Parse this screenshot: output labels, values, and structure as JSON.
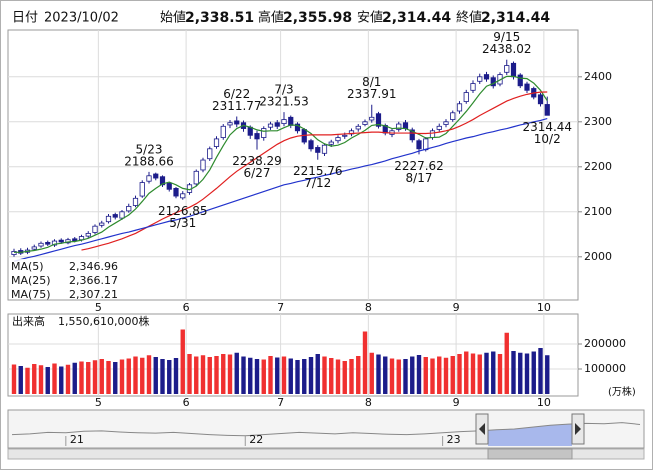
{
  "header": {
    "date_label": "日付",
    "date": "2023/10/02",
    "items": [
      {
        "label": "始値",
        "value": "2,338.51",
        "color": "#000000"
      },
      {
        "label": "高値",
        "value": "2,355.98",
        "color": "#e00000"
      },
      {
        "label": "安値",
        "value": "2,314.44",
        "color": "#008000"
      },
      {
        "label": "終値",
        "value": "2,314.44",
        "color": "#000000"
      }
    ]
  },
  "chart_data": [
    {
      "type": "candlestick",
      "categories": [
        null,
        null,
        null,
        null,
        null,
        null,
        null,
        null,
        null,
        null,
        null,
        null,
        null,
        "5",
        null,
        null,
        null,
        null,
        null,
        null,
        null,
        null,
        null,
        null,
        null,
        null,
        "6",
        null,
        null,
        null,
        null,
        null,
        null,
        null,
        null,
        null,
        null,
        null,
        null,
        null,
        "7",
        null,
        null,
        null,
        null,
        null,
        null,
        null,
        null,
        null,
        null,
        null,
        null,
        "8",
        null,
        null,
        null,
        null,
        null,
        null,
        null,
        null,
        null,
        null,
        null,
        null,
        "9",
        null,
        null,
        null,
        null,
        null,
        null,
        null,
        null,
        null,
        null,
        null,
        null,
        "10"
      ],
      "open": [
        2005,
        2014,
        2010,
        2017,
        2024,
        2032,
        2026,
        2037,
        2031,
        2040,
        2038,
        2046,
        2054,
        2070,
        2078,
        2094,
        2086,
        2102,
        2114,
        2135,
        2168,
        2184,
        2178,
        2163,
        2152,
        2131,
        2143,
        2162,
        2193,
        2218,
        2245,
        2265,
        2293,
        2302,
        2298,
        2288,
        2274,
        2265,
        2288,
        2298,
        2296,
        2310,
        2295,
        2283,
        2258,
        2243,
        2230,
        2250,
        2258,
        2268,
        2273,
        2284,
        2294,
        2304,
        2318,
        2292,
        2272,
        2283,
        2298,
        2282,
        2258,
        2238,
        2265,
        2283,
        2294,
        2305,
        2324,
        2345,
        2370,
        2390,
        2405,
        2398,
        2384,
        2410,
        2430,
        2404,
        2384,
        2374,
        2360,
        2338.51
      ],
      "high": [
        2018,
        2019,
        2020,
        2027,
        2034,
        2036,
        2039,
        2041,
        2042,
        2044,
        2049,
        2057,
        2072,
        2080,
        2095,
        2098,
        2104,
        2118,
        2136,
        2170,
        2188.66,
        2187,
        2181,
        2166,
        2155,
        2146,
        2164,
        2194,
        2220,
        2245,
        2268,
        2295,
        2304,
        2311.77,
        2303,
        2292,
        2280,
        2290,
        2300,
        2304,
        2321.53,
        2314,
        2299,
        2286,
        2262,
        2248,
        2252,
        2260,
        2270,
        2276,
        2285,
        2295,
        2305,
        2337.91,
        2322,
        2296,
        2286,
        2300,
        2304,
        2287,
        2262,
        2266,
        2285,
        2296,
        2306,
        2325,
        2346,
        2371,
        2392,
        2407,
        2411,
        2403,
        2410,
        2438.02,
        2434,
        2408,
        2389,
        2378,
        2364,
        2355.98
      ],
      "low": [
        2000,
        2004,
        2006,
        2013,
        2020,
        2024,
        2022,
        2029,
        2028,
        2032,
        2034,
        2042,
        2050,
        2065,
        2074,
        2083,
        2082,
        2098,
        2110,
        2131,
        2163,
        2170,
        2155,
        2145,
        2130,
        2126.85,
        2138,
        2158,
        2188,
        2213,
        2240,
        2260,
        2286,
        2288,
        2278,
        2262,
        2238.29,
        2258,
        2282,
        2284,
        2290,
        2286,
        2274,
        2250,
        2234,
        2215.76,
        2224,
        2244,
        2252,
        2262,
        2268,
        2278,
        2290,
        2298,
        2285,
        2270,
        2266,
        2278,
        2280,
        2254,
        2227.62,
        2234,
        2260,
        2278,
        2288,
        2300,
        2318,
        2340,
        2364,
        2384,
        2389,
        2374,
        2379,
        2404,
        2394,
        2375,
        2364,
        2350,
        2334,
        2314.44
      ],
      "close": [
        2012,
        2008,
        2015,
        2022,
        2030,
        2028,
        2035,
        2033,
        2038,
        2036,
        2045,
        2052,
        2068,
        2075,
        2090,
        2088,
        2100,
        2112,
        2130,
        2165,
        2180,
        2175,
        2160,
        2150,
        2135,
        2140,
        2160,
        2190,
        2215,
        2240,
        2262,
        2290,
        2298,
        2295,
        2285,
        2270,
        2262,
        2285,
        2295,
        2290,
        2305,
        2292,
        2280,
        2255,
        2240,
        2232,
        2248,
        2255,
        2265,
        2270,
        2280,
        2290,
        2300,
        2310,
        2290,
        2275,
        2280,
        2295,
        2285,
        2260,
        2240,
        2262,
        2280,
        2290,
        2300,
        2320,
        2340,
        2365,
        2385,
        2400,
        2395,
        2380,
        2405,
        2425,
        2400,
        2380,
        2370,
        2355,
        2340,
        2314.44
      ],
      "up_color": "#ffffff",
      "down_color": "#1c1c8a",
      "edge_color": "#1c1c8a",
      "series": [
        {
          "name": "MA(5)",
          "color": "#2e8b2e",
          "value_label": "2,346.96",
          "values": [
            2010,
            2010,
            2012,
            2014,
            2017,
            2021,
            2028,
            2030,
            2033,
            2034,
            2037,
            2041,
            2048,
            2055,
            2066,
            2075,
            2084,
            2093,
            2106,
            2123,
            2141,
            2152,
            2162,
            2166,
            2160,
            2152,
            2149,
            2157,
            2172,
            2193,
            2221,
            2247,
            2271,
            2285,
            2292,
            2288,
            2282,
            2279,
            2280,
            2280,
            2287,
            2293,
            2292,
            2284,
            2274,
            2260,
            2251,
            2246,
            2248,
            2254,
            2264,
            2272,
            2281,
            2292,
            2294,
            2291,
            2285,
            2286,
            2285,
            2279,
            2272,
            2264,
            2265,
            2266,
            2274,
            2290,
            2306,
            2323,
            2342,
            2362,
            2379,
            2385,
            2393,
            2401,
            2401,
            2397,
            2396,
            2386,
            2370,
            2346.96
          ]
        },
        {
          "name": "MA(25)",
          "color": "#e02020",
          "value_label": "2,366.17",
          "values": [
            null,
            null,
            null,
            null,
            null,
            null,
            null,
            null,
            null,
            null,
            2015,
            2018,
            2022,
            2026,
            2030,
            2035,
            2040,
            2046,
            2052,
            2060,
            2068,
            2076,
            2084,
            2091,
            2098,
            2104,
            2110,
            2118,
            2128,
            2140,
            2152,
            2165,
            2178,
            2190,
            2200,
            2210,
            2220,
            2230,
            2240,
            2250,
            2258,
            2264,
            2268,
            2270,
            2271,
            2271,
            2271,
            2271,
            2272,
            2273,
            2274,
            2275,
            2276,
            2277,
            2277,
            2276,
            2275,
            2275,
            2275,
            2275,
            2274,
            2274,
            2275,
            2277,
            2280,
            2284,
            2290,
            2297,
            2305,
            2314,
            2322,
            2330,
            2338,
            2346,
            2352,
            2357,
            2361,
            2364,
            2366,
            2366.17
          ]
        },
        {
          "name": "MA(75)",
          "color": "#2233cc",
          "value_label": "2,307.21",
          "values": [
            1990,
            1994,
            1998,
            2001,
            2005,
            2009,
            2013,
            2017,
            2021,
            2025,
            2028,
            2032,
            2036,
            2040,
            2044,
            2048,
            2052,
            2055,
            2059,
            2063,
            2067,
            2071,
            2075,
            2079,
            2082,
            2086,
            2090,
            2095,
            2100,
            2105,
            2110,
            2115,
            2120,
            2125,
            2130,
            2135,
            2140,
            2145,
            2150,
            2155,
            2160,
            2163,
            2167,
            2170,
            2174,
            2177,
            2181,
            2184,
            2188,
            2191,
            2195,
            2198,
            2202,
            2205,
            2209,
            2213,
            2218,
            2222,
            2226,
            2230,
            2235,
            2239,
            2243,
            2247,
            2252,
            2256,
            2260,
            2264,
            2267,
            2271,
            2275,
            2278,
            2282,
            2285,
            2289,
            2293,
            2296,
            2300,
            2303,
            2307.21
          ]
        }
      ],
      "annotations": [
        {
          "date": "5/23",
          "value": 2188.66
        },
        {
          "date": "5/31",
          "value": 2126.85
        },
        {
          "date": "6/22",
          "value": 2311.77
        },
        {
          "date": "6/27",
          "value": 2238.29
        },
        {
          "date": "7/3",
          "value": 2321.53
        },
        {
          "date": "7/12",
          "value": 2215.76
        },
        {
          "date": "8/1",
          "value": 2337.91
        },
        {
          "date": "8/17",
          "value": 2227.62
        },
        {
          "date": "9/15",
          "value": 2438.02
        },
        {
          "date": "10/2",
          "value": 2314.44
        }
      ],
      "ylim": [
        1904,
        2504
      ],
      "yticks": [
        2000,
        2100,
        2200,
        2300,
        2400
      ],
      "grid": true
    },
    {
      "type": "bar",
      "title": "出来高",
      "total_label": "1,550,610,000株",
      "unit": "(万株)",
      "categories": [
        null,
        null,
        null,
        null,
        null,
        null,
        null,
        null,
        null,
        null,
        null,
        null,
        null,
        "5",
        null,
        null,
        null,
        null,
        null,
        null,
        null,
        null,
        null,
        null,
        null,
        null,
        "6",
        null,
        null,
        null,
        null,
        null,
        null,
        null,
        null,
        null,
        null,
        null,
        null,
        null,
        "7",
        null,
        null,
        null,
        null,
        null,
        null,
        null,
        null,
        null,
        null,
        null,
        null,
        "8",
        null,
        null,
        null,
        null,
        null,
        null,
        null,
        null,
        null,
        null,
        null,
        null,
        "9",
        null,
        null,
        null,
        null,
        null,
        null,
        null,
        null,
        null,
        null,
        null,
        null,
        "10"
      ],
      "values": [
        118000,
        112000,
        105000,
        120000,
        115000,
        108000,
        122000,
        110000,
        117000,
        125000,
        130000,
        128000,
        135000,
        140000,
        132000,
        128000,
        138000,
        142000,
        150000,
        145000,
        155000,
        148000,
        140000,
        136000,
        144000,
        258000,
        160000,
        150000,
        155000,
        148000,
        152000,
        160000,
        158000,
        165000,
        150000,
        145000,
        140000,
        138000,
        152000,
        146000,
        150000,
        142000,
        136000,
        140000,
        148000,
        160000,
        150000,
        144000,
        138000,
        132000,
        140000,
        152000,
        250000,
        165000,
        158000,
        150000,
        142000,
        138000,
        140000,
        150000,
        156000,
        148000,
        142000,
        150000,
        145000,
        152000,
        160000,
        170000,
        162000,
        158000,
        165000,
        170000,
        160000,
        245000,
        172000,
        165000,
        162000,
        170000,
        184000,
        155061
      ],
      "up_color": "#f03030",
      "down_color": "#1c1c8a",
      "ylim": [
        0,
        320000
      ],
      "yticks": [
        100000,
        200000
      ],
      "grid": true
    },
    {
      "type": "area",
      "categories": [
        null,
        null,
        null,
        "21",
        null,
        null,
        null,
        null,
        null,
        null,
        null,
        null,
        null,
        "22",
        null,
        null,
        null,
        null,
        null,
        null,
        null,
        null,
        null,
        null,
        "23",
        null,
        null,
        null,
        null,
        null,
        null,
        null,
        null,
        null,
        null,
        null
      ],
      "values": [
        1900,
        1920,
        1960,
        1950,
        1990,
        2000,
        1970,
        1950,
        1940,
        1960,
        1930,
        1900,
        1880,
        1870,
        1900,
        1930,
        1960,
        1940,
        1920,
        1950,
        1930,
        1910,
        1900,
        1920,
        1950,
        1980,
        2000,
        2030,
        2050,
        2100,
        2150,
        2180,
        2200,
        2190,
        2220,
        2170
      ],
      "color": "#888888",
      "window_color": "#a8b8ec",
      "ylim": [
        1600,
        2500
      ]
    }
  ]
}
